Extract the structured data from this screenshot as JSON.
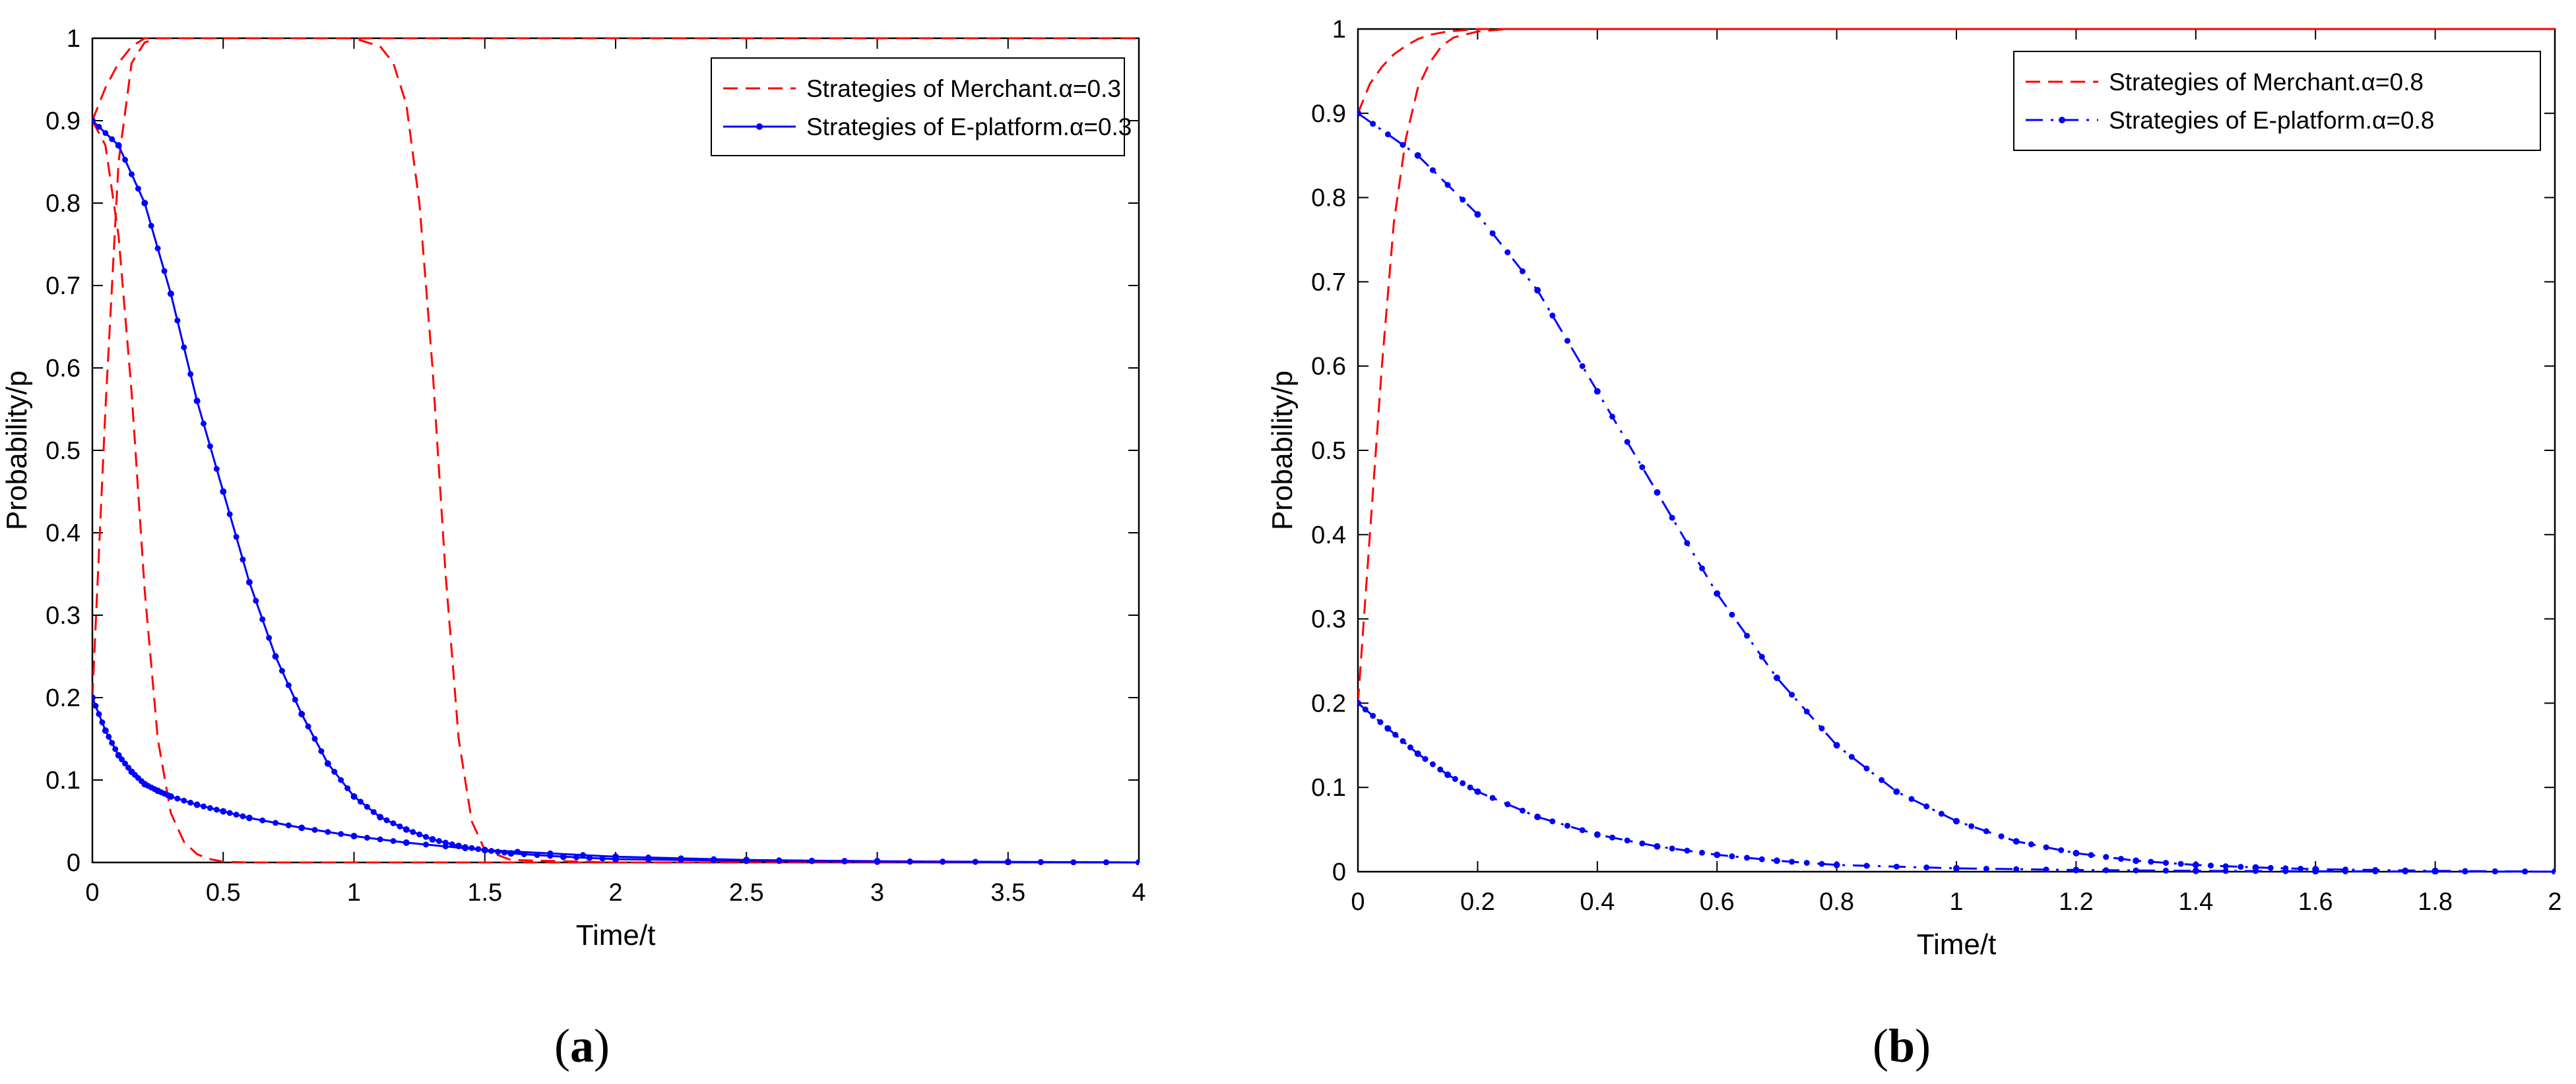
{
  "figure": {
    "panels": [
      {
        "id": "a",
        "label_open": "(",
        "label_letter": "a",
        "label_close": ")"
      },
      {
        "id": "b",
        "label_open": "(",
        "label_letter": "b",
        "label_close": ")"
      }
    ]
  },
  "chart_data": [
    {
      "type": "line",
      "panel": "a",
      "title": "",
      "xlabel": "Time/t",
      "ylabel": "Probability/p",
      "xlim": [
        0,
        4
      ],
      "ylim": [
        0,
        1
      ],
      "xticks": [
        0,
        0.5,
        1,
        1.5,
        2,
        2.5,
        3,
        3.5,
        4
      ],
      "xtick_labels": [
        "0",
        "0.5",
        "1",
        "1.5",
        "2",
        "2.5",
        "3",
        "3.5",
        "4"
      ],
      "yticks": [
        0,
        0.1,
        0.2,
        0.3,
        0.4,
        0.5,
        0.6,
        0.7,
        0.8,
        0.9,
        1
      ],
      "ytick_labels": [
        "0",
        "0.1",
        "0.2",
        "0.3",
        "0.4",
        "0.5",
        "0.6",
        "0.7",
        "0.8",
        "0.9",
        "1"
      ],
      "grid": false,
      "legend_position": "top-right",
      "series": [
        {
          "name": "Strategies of Merchant.α=0.3",
          "color": "#ff0000",
          "style": "dashed",
          "markers": false,
          "x": [
            0,
            0.05,
            0.1,
            0.15,
            0.2,
            0.25,
            0.3,
            0.35,
            0.4,
            0.5,
            0.6,
            1.0,
            1.5,
            2.0,
            3.0,
            4.0
          ],
          "y": [
            0.2,
            0.55,
            0.85,
            0.97,
            0.995,
            1.0,
            1.0,
            1.0,
            1.0,
            1.0,
            1.0,
            1.0,
            1.0,
            1.0,
            1.0,
            1.0
          ]
        },
        {
          "name": "",
          "color": "#ff0000",
          "style": "dashed",
          "markers": false,
          "x": [
            0,
            0.05,
            0.1,
            0.15,
            0.2,
            0.25,
            0.3,
            0.35,
            0.4,
            0.45,
            0.5,
            0.6,
            1.0,
            2.0,
            4.0
          ],
          "y": [
            0.9,
            0.87,
            0.76,
            0.57,
            0.33,
            0.15,
            0.06,
            0.025,
            0.01,
            0.004,
            0.001,
            0,
            0,
            0,
            0
          ]
        },
        {
          "name": "",
          "color": "#ff0000",
          "style": "dashed",
          "markers": false,
          "x": [
            0,
            0.05,
            0.1,
            0.15,
            0.2,
            0.4,
            0.6,
            0.8,
            1.0,
            1.1,
            1.15,
            1.2,
            1.25,
            1.3,
            1.35,
            1.4,
            1.45,
            1.5,
            1.6,
            2.0,
            4.0
          ],
          "y": [
            0.9,
            0.94,
            0.97,
            0.99,
            1.0,
            1.0,
            1.0,
            1.0,
            1.0,
            0.99,
            0.97,
            0.92,
            0.8,
            0.6,
            0.35,
            0.15,
            0.05,
            0.015,
            0.003,
            0,
            0
          ]
        },
        {
          "name": "Strategies of E-platform.α=0.3",
          "color": "#0000ff",
          "style": "solid",
          "markers": true,
          "x": [
            0,
            0.1,
            0.2,
            0.3,
            0.4,
            0.5,
            0.6,
            0.7,
            0.8,
            0.9,
            1.0,
            1.1,
            1.2,
            1.3,
            1.4,
            1.5,
            1.6,
            1.8,
            2.0,
            2.5,
            3.0,
            3.5,
            4.0
          ],
          "y": [
            0.9,
            0.87,
            0.8,
            0.69,
            0.56,
            0.45,
            0.34,
            0.25,
            0.18,
            0.12,
            0.08,
            0.055,
            0.04,
            0.028,
            0.02,
            0.015,
            0.011,
            0.007,
            0.004,
            0.002,
            0.001,
            0.0005,
            0
          ]
        },
        {
          "name": "",
          "color": "#0000ff",
          "style": "solid",
          "markers": true,
          "x": [
            0,
            0.05,
            0.1,
            0.15,
            0.2,
            0.25,
            0.3,
            0.4,
            0.5,
            0.6,
            0.8,
            1.0,
            1.2,
            1.5,
            2.0,
            2.5,
            3.0,
            3.5,
            4.0
          ],
          "y": [
            0.2,
            0.16,
            0.13,
            0.11,
            0.095,
            0.087,
            0.08,
            0.07,
            0.062,
            0.054,
            0.042,
            0.032,
            0.024,
            0.015,
            0.007,
            0.003,
            0.0015,
            0.0007,
            0
          ]
        }
      ]
    },
    {
      "type": "line",
      "panel": "b",
      "title": "",
      "xlabel": "Time/t",
      "ylabel": "Probability/p",
      "xlim": [
        0,
        2
      ],
      "ylim": [
        0,
        1
      ],
      "xticks": [
        0,
        0.2,
        0.4,
        0.6,
        0.8,
        1,
        1.2,
        1.4,
        1.6,
        1.8,
        2
      ],
      "xtick_labels": [
        "0",
        "0.2",
        "0.4",
        "0.6",
        "0.8",
        "1",
        "1.2",
        "1.4",
        "1.6",
        "1.8",
        "2"
      ],
      "yticks": [
        0,
        0.1,
        0.2,
        0.3,
        0.4,
        0.5,
        0.6,
        0.7,
        0.8,
        0.9,
        1
      ],
      "ytick_labels": [
        "0",
        "0.1",
        "0.2",
        "0.3",
        "0.4",
        "0.5",
        "0.6",
        "0.7",
        "0.8",
        "0.9",
        "1"
      ],
      "grid": false,
      "legend_position": "top-right",
      "series": [
        {
          "name": "Strategies of Merchant.α=0.8",
          "color": "#ff0000",
          "style": "dashed",
          "markers": false,
          "x": [
            0,
            0.02,
            0.04,
            0.06,
            0.08,
            0.1,
            0.12,
            0.14,
            0.16,
            0.2,
            0.25,
            0.4,
            1.0,
            2.0
          ],
          "y": [
            0.2,
            0.4,
            0.6,
            0.77,
            0.87,
            0.93,
            0.96,
            0.98,
            0.99,
            0.997,
            1.0,
            1.0,
            1.0,
            1.0
          ]
        },
        {
          "name": "",
          "color": "#ff0000",
          "style": "dashed",
          "markers": false,
          "x": [
            0,
            0.02,
            0.04,
            0.06,
            0.08,
            0.1,
            0.12,
            0.15,
            0.2,
            0.3,
            1.0,
            2.0
          ],
          "y": [
            0.9,
            0.935,
            0.955,
            0.97,
            0.98,
            0.988,
            0.993,
            0.997,
            1.0,
            1.0,
            1.0,
            1.0
          ]
        },
        {
          "name": "Strategies of E-platform.α=0.8",
          "color": "#0000ff",
          "style": "dashdot",
          "markers": true,
          "x": [
            0,
            0.1,
            0.2,
            0.3,
            0.4,
            0.5,
            0.6,
            0.7,
            0.8,
            0.9,
            1.0,
            1.1,
            1.2,
            1.3,
            1.4,
            1.5,
            1.6,
            1.8,
            2.0
          ],
          "y": [
            0.9,
            0.85,
            0.78,
            0.69,
            0.57,
            0.45,
            0.33,
            0.23,
            0.15,
            0.095,
            0.06,
            0.036,
            0.022,
            0.013,
            0.008,
            0.005,
            0.003,
            0.001,
            0
          ]
        },
        {
          "name": "",
          "color": "#0000ff",
          "style": "dashdot",
          "markers": true,
          "x": [
            0,
            0.05,
            0.1,
            0.15,
            0.2,
            0.3,
            0.4,
            0.5,
            0.6,
            0.7,
            0.8,
            1.0,
            1.2,
            1.4,
            1.6,
            1.8,
            2.0
          ],
          "y": [
            0.2,
            0.17,
            0.14,
            0.115,
            0.095,
            0.065,
            0.044,
            0.03,
            0.02,
            0.013,
            0.008,
            0.004,
            0.002,
            0.001,
            0.0005,
            0.0002,
            0
          ]
        }
      ]
    }
  ]
}
